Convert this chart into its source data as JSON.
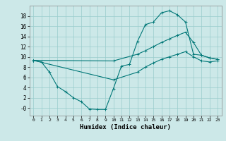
{
  "xlabel": "Humidex (Indice chaleur)",
  "bg_color": "#cce8e8",
  "grid_color": "#99cccc",
  "line_color": "#007777",
  "xlim": [
    -0.5,
    23.5
  ],
  "ylim": [
    -1.5,
    20.0
  ],
  "xticks": [
    0,
    1,
    2,
    3,
    4,
    5,
    6,
    7,
    8,
    9,
    10,
    11,
    12,
    13,
    14,
    15,
    16,
    17,
    18,
    19,
    20,
    21,
    22,
    23
  ],
  "yticks": [
    0,
    2,
    4,
    6,
    8,
    10,
    12,
    14,
    16,
    18
  ],
  "ytick_labels": [
    "-0",
    "2",
    "4",
    "6",
    "8",
    "10",
    "12",
    "14",
    "16",
    "18"
  ],
  "curve1_x": [
    0,
    1,
    2,
    3,
    4,
    5,
    6,
    7,
    8,
    9,
    10,
    11,
    12,
    13,
    14,
    15,
    16,
    17,
    18,
    19,
    20,
    21,
    22,
    23
  ],
  "curve1_y": [
    9.3,
    9.0,
    7.0,
    4.2,
    3.2,
    2.0,
    1.2,
    -0.2,
    -0.3,
    -0.3,
    3.8,
    8.2,
    8.5,
    13.0,
    16.3,
    16.8,
    18.6,
    19.0,
    18.2,
    16.8,
    10.5,
    10.3,
    9.8,
    9.5
  ],
  "curve2_x": [
    0,
    10,
    13,
    14,
    15,
    16,
    17,
    18,
    19,
    20,
    21,
    22,
    23
  ],
  "curve2_y": [
    9.3,
    9.2,
    10.5,
    11.2,
    12.0,
    12.8,
    13.5,
    14.2,
    14.8,
    12.8,
    10.3,
    9.8,
    9.5
  ],
  "curve3_x": [
    0,
    10,
    13,
    14,
    15,
    16,
    17,
    18,
    19,
    20,
    21,
    22,
    23
  ],
  "curve3_y": [
    9.3,
    5.5,
    7.0,
    8.0,
    8.8,
    9.5,
    10.0,
    10.5,
    11.0,
    10.0,
    9.2,
    9.0,
    9.2
  ]
}
